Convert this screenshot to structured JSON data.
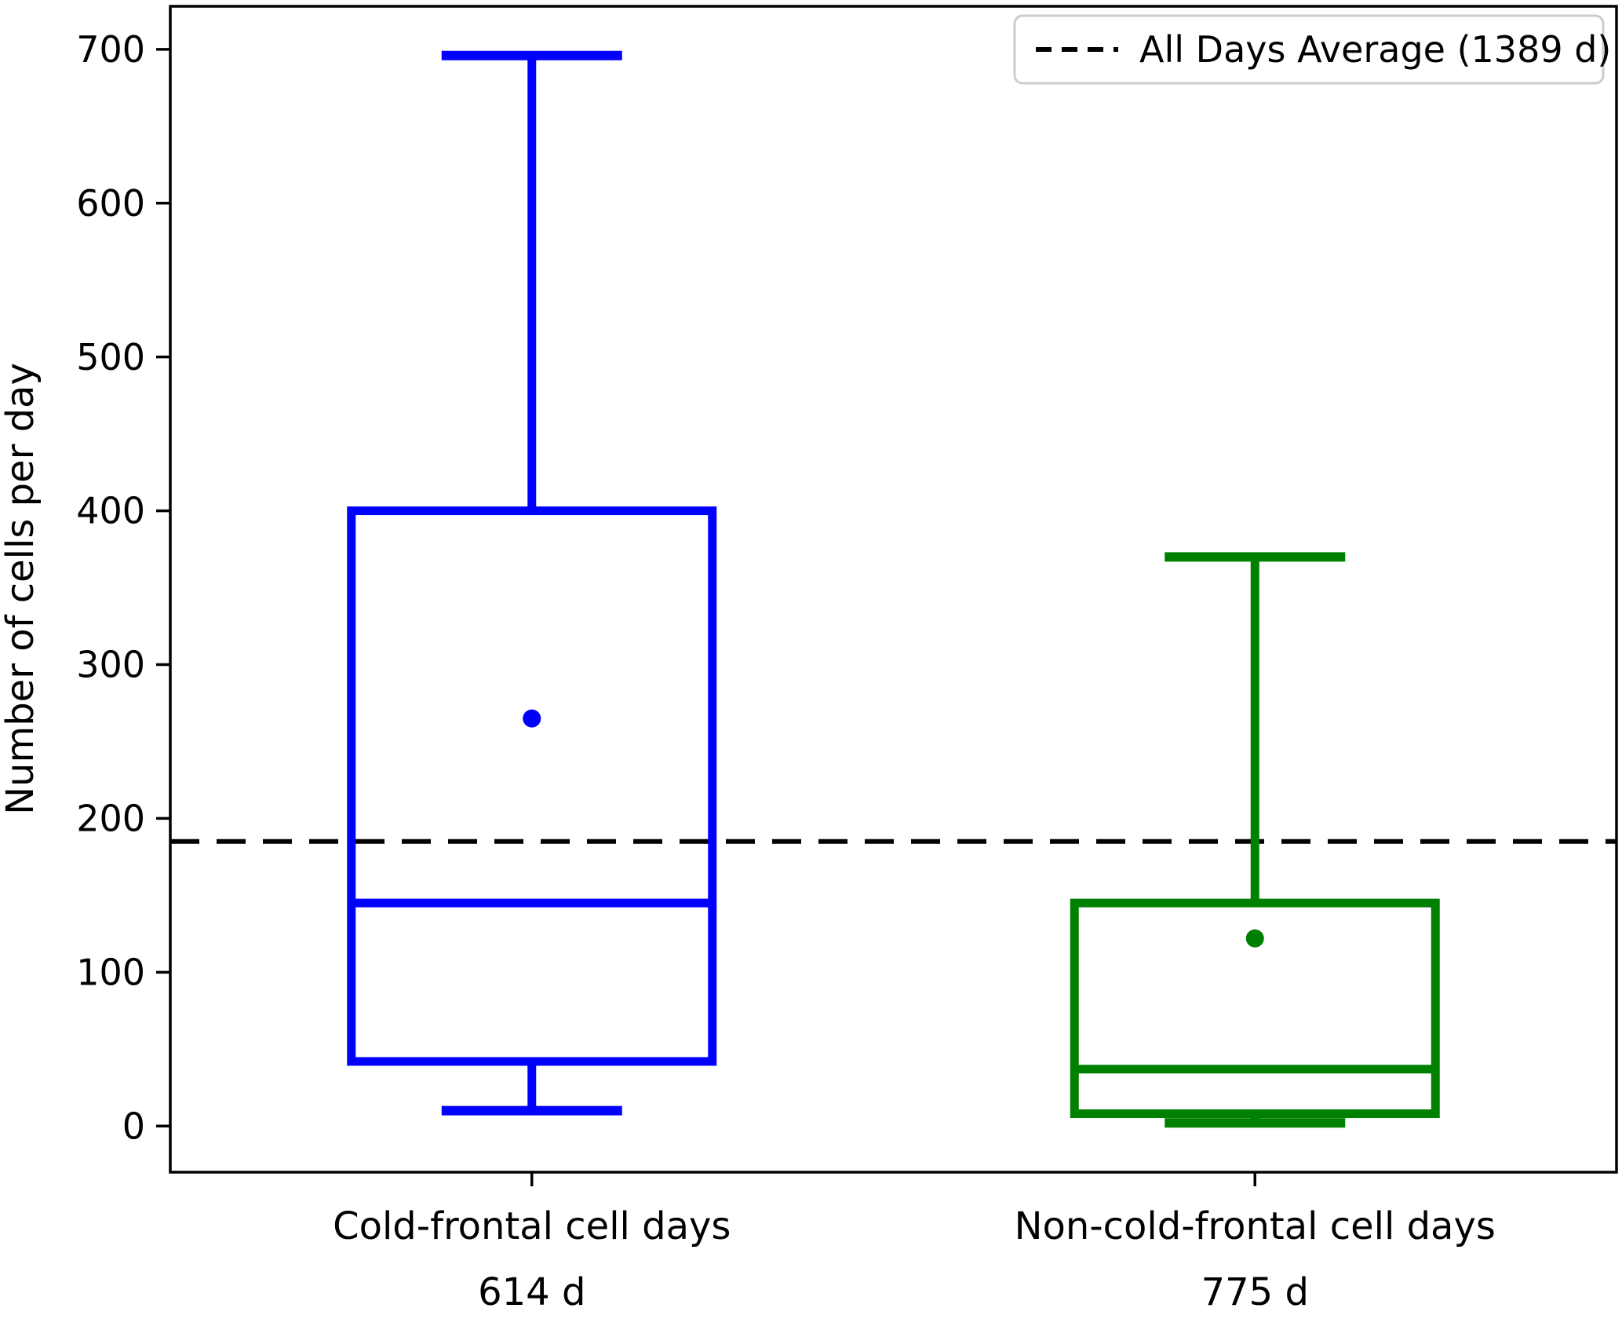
{
  "figure": {
    "background": "#ffffff",
    "frame_color": "#000000"
  },
  "chart_data": {
    "type": "boxplot",
    "title": "",
    "xlabel": "",
    "ylabel": "Number of cells per day",
    "ylim": [
      -30,
      728
    ],
    "yticks": [
      "0",
      "100",
      "200",
      "300",
      "400",
      "500",
      "600",
      "700"
    ],
    "ytick_values": [
      0,
      100,
      200,
      300,
      400,
      500,
      600,
      700
    ],
    "grid": false,
    "categories": [
      "Cold-frontal cell days",
      "Non-cold-frontal cell days"
    ],
    "series": [
      {
        "name": "Cold-frontal cell days",
        "days_label": "614 d",
        "color": "#0000ff",
        "whisker_low": 10,
        "q1": 42,
        "median": 145,
        "q3": 400,
        "whisker_high": 696,
        "mean": 265
      },
      {
        "name": "Non-cold-frontal cell days",
        "days_label": "775 d",
        "color": "#008000",
        "whisker_low": 2,
        "q1": 8,
        "median": 37,
        "q3": 145,
        "whisker_high": 370,
        "mean": 122
      }
    ],
    "reference_line": {
      "label": "All Days Average (1389 d)",
      "value": 185,
      "color": "#000000",
      "style": "dashed"
    },
    "legend": {
      "position": "upper right",
      "border_color": "#cccccc",
      "background": "#ffffff"
    }
  }
}
